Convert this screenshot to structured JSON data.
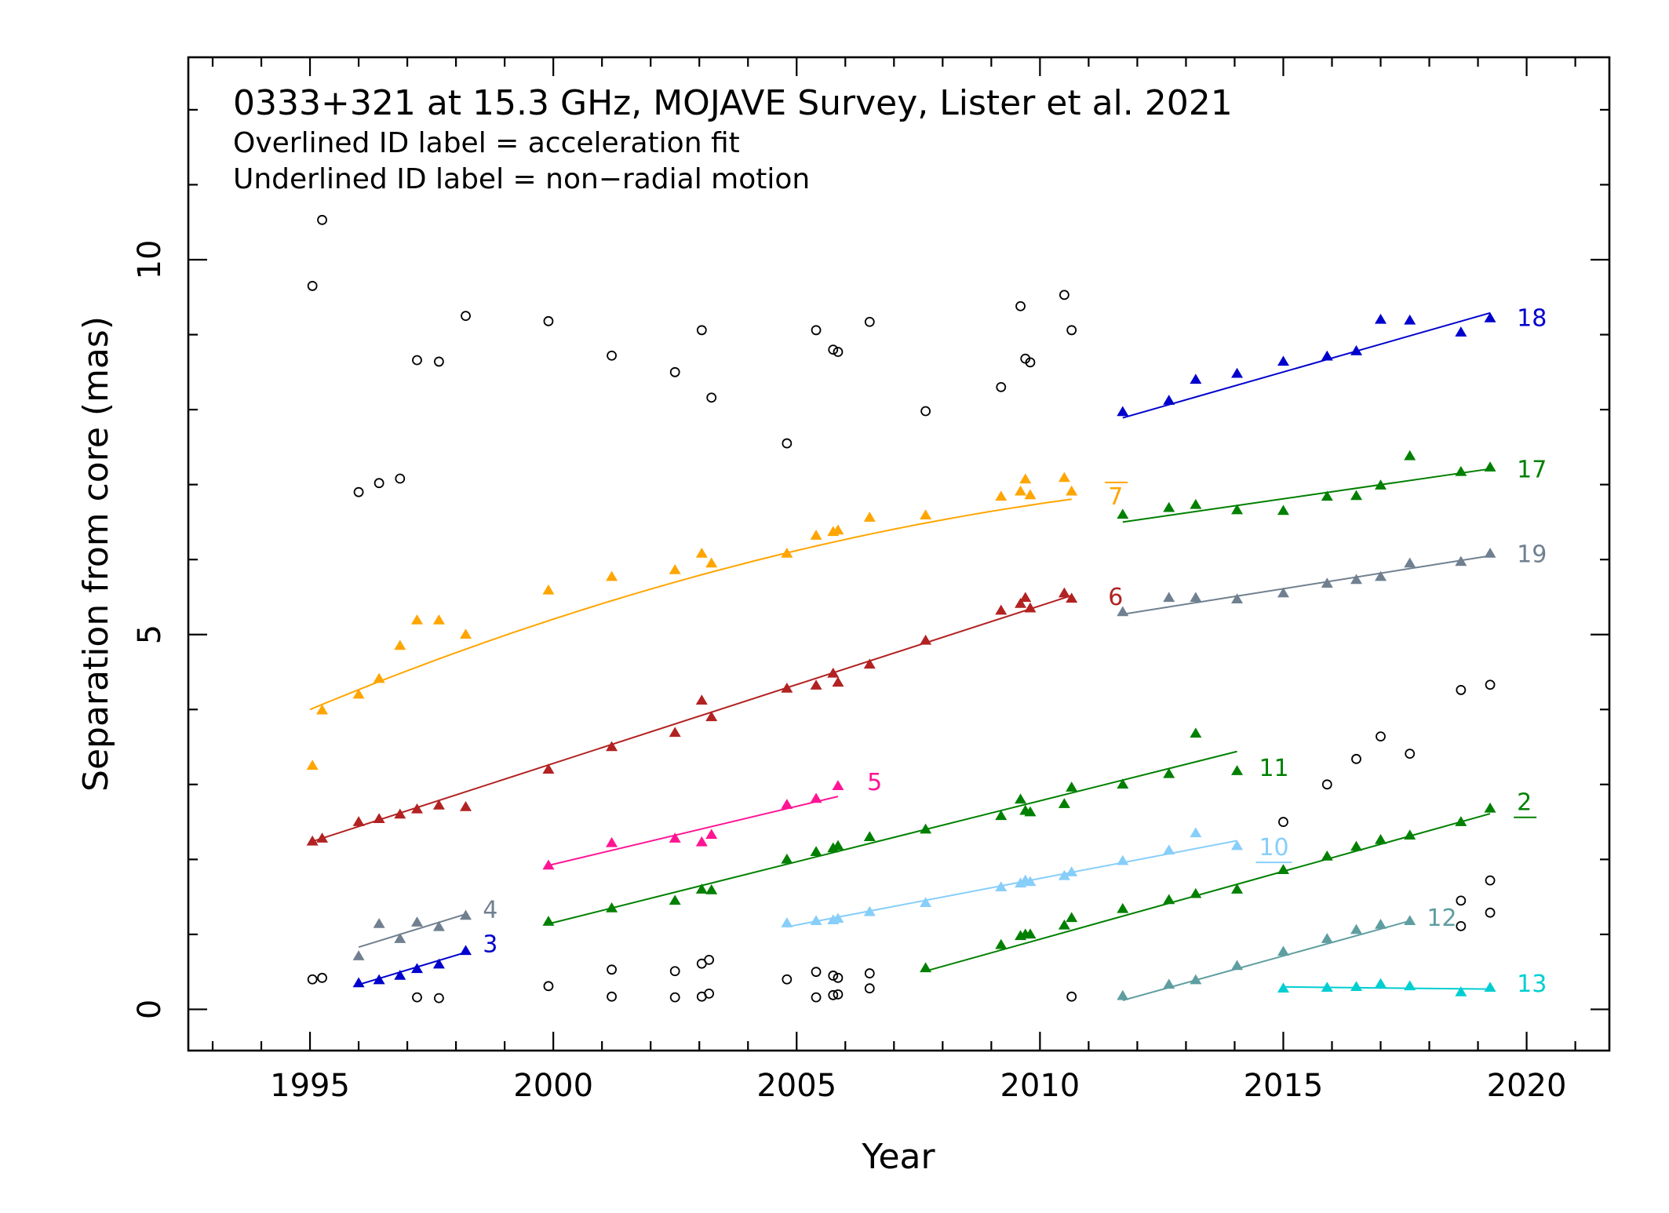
{
  "chart_data": {
    "type": "scatter",
    "title": "0333+321 at 15.3 GHz, MOJAVE Survey, Lister et al. 2021",
    "notes": [
      "Overlined ID label = acceleration fit",
      "Underlined ID label = non−radial motion"
    ],
    "xlabel": "Year",
    "ylabel": "Separation from core (mas)",
    "xlim": [
      1992.5,
      2021.7
    ],
    "ylim": [
      -0.55,
      12.7
    ],
    "xticks": [
      1995,
      2000,
      2005,
      2010,
      2015,
      2020
    ],
    "yticks": [
      0,
      5,
      10
    ],
    "grid": false,
    "legend": "none",
    "unassigned": {
      "marker": "open-circle",
      "color": "#000000",
      "points": [
        [
          1995.05,
          9.65
        ],
        [
          1995.25,
          10.53
        ],
        [
          1996.0,
          6.9
        ],
        [
          1996.42,
          7.02
        ],
        [
          1996.85,
          7.08
        ],
        [
          1997.2,
          8.66
        ],
        [
          1997.65,
          8.64
        ],
        [
          1998.2,
          9.25
        ],
        [
          1999.9,
          9.18
        ],
        [
          2001.2,
          8.72
        ],
        [
          2002.5,
          8.5
        ],
        [
          2003.05,
          9.06
        ],
        [
          2003.25,
          8.16
        ],
        [
          2004.8,
          7.55
        ],
        [
          2005.4,
          9.06
        ],
        [
          2005.75,
          8.8
        ],
        [
          2005.85,
          8.77
        ],
        [
          2006.5,
          9.17
        ],
        [
          2007.65,
          7.98
        ],
        [
          2009.2,
          8.3
        ],
        [
          2009.6,
          9.38
        ],
        [
          2009.7,
          8.68
        ],
        [
          2009.8,
          8.63
        ],
        [
          2010.5,
          9.53
        ],
        [
          2010.65,
          9.06
        ],
        [
          1995.05,
          0.4
        ],
        [
          1995.25,
          0.42
        ],
        [
          1997.2,
          0.16
        ],
        [
          1997.65,
          0.15
        ],
        [
          1999.9,
          0.31
        ],
        [
          2001.2,
          0.17
        ],
        [
          2001.2,
          0.53
        ],
        [
          2002.5,
          0.16
        ],
        [
          2002.5,
          0.51
        ],
        [
          2003.05,
          0.17
        ],
        [
          2003.05,
          0.61
        ],
        [
          2003.2,
          0.66
        ],
        [
          2003.2,
          0.21
        ],
        [
          2004.8,
          0.4
        ],
        [
          2005.4,
          0.16
        ],
        [
          2005.4,
          0.5
        ],
        [
          2005.75,
          0.45
        ],
        [
          2005.75,
          0.19
        ],
        [
          2005.85,
          0.42
        ],
        [
          2005.85,
          0.2
        ],
        [
          2006.5,
          0.48
        ],
        [
          2006.5,
          0.28
        ],
        [
          2010.65,
          0.17
        ],
        [
          2015.0,
          2.5
        ],
        [
          2015.9,
          3.0
        ],
        [
          2016.5,
          3.34
        ],
        [
          2017.0,
          3.64
        ],
        [
          2017.6,
          3.41
        ],
        [
          2018.65,
          4.26
        ],
        [
          2019.25,
          4.33
        ],
        [
          2018.65,
          1.45
        ],
        [
          2019.25,
          1.72
        ],
        [
          2018.65,
          1.11
        ],
        [
          2019.25,
          1.29
        ]
      ]
    },
    "series": [
      {
        "name": "7",
        "color": "#ffa500",
        "label_style": "overline",
        "label_at": [
          2011.4,
          6.84
        ],
        "fit": {
          "kind": "quadratic",
          "coef": [
            4.0,
            0.27,
            -0.0058
          ],
          "x0": 1995.0,
          "range": [
            1995.0,
            2010.65
          ]
        },
        "points": [
          [
            1995.05,
            3.25
          ],
          [
            1995.25,
            3.99
          ],
          [
            1996.0,
            4.2
          ],
          [
            1996.42,
            4.41
          ],
          [
            1996.85,
            4.85
          ],
          [
            1997.2,
            5.19
          ],
          [
            1997.65,
            5.19
          ],
          [
            1998.2,
            5.0
          ],
          [
            1999.9,
            5.59
          ],
          [
            2001.2,
            5.77
          ],
          [
            2002.5,
            5.86
          ],
          [
            2003.05,
            6.08
          ],
          [
            2003.25,
            5.95
          ],
          [
            2004.8,
            6.08
          ],
          [
            2005.4,
            6.32
          ],
          [
            2005.75,
            6.37
          ],
          [
            2005.85,
            6.39
          ],
          [
            2006.5,
            6.56
          ],
          [
            2007.65,
            6.59
          ],
          [
            2009.2,
            6.84
          ],
          [
            2009.6,
            6.91
          ],
          [
            2009.7,
            7.07
          ],
          [
            2009.8,
            6.86
          ],
          [
            2010.5,
            7.09
          ],
          [
            2010.65,
            6.91
          ]
        ]
      },
      {
        "name": "6",
        "color": "#b22222",
        "label_style": "none",
        "label_at": [
          2011.4,
          5.5
        ],
        "fit": {
          "kind": "linear",
          "range": [
            1995.05,
            2010.65
          ],
          "y": [
            2.24,
            5.52
          ]
        },
        "points": [
          [
            1995.05,
            2.24
          ],
          [
            1995.25,
            2.28
          ],
          [
            1996.0,
            2.5
          ],
          [
            1996.42,
            2.54
          ],
          [
            1996.85,
            2.6
          ],
          [
            1997.2,
            2.67
          ],
          [
            1997.65,
            2.72
          ],
          [
            1998.2,
            2.7
          ],
          [
            1999.9,
            3.2
          ],
          [
            2001.2,
            3.5
          ],
          [
            2002.5,
            3.69
          ],
          [
            2003.05,
            4.12
          ],
          [
            2003.25,
            3.9
          ],
          [
            2004.8,
            4.28
          ],
          [
            2005.4,
            4.32
          ],
          [
            2005.75,
            4.48
          ],
          [
            2005.85,
            4.36
          ],
          [
            2006.5,
            4.6
          ],
          [
            2007.65,
            4.92
          ],
          [
            2009.2,
            5.32
          ],
          [
            2009.6,
            5.41
          ],
          [
            2009.7,
            5.49
          ],
          [
            2009.8,
            5.35
          ],
          [
            2010.5,
            5.55
          ],
          [
            2010.65,
            5.48
          ]
        ]
      },
      {
        "name": "4",
        "color": "#708090",
        "label_style": "none",
        "label_at": [
          1998.55,
          1.33
        ],
        "fit": {
          "kind": "linear",
          "range": [
            1996.0,
            1998.2
          ],
          "y": [
            0.83,
            1.27
          ]
        },
        "points": [
          [
            1996.0,
            0.71
          ],
          [
            1996.42,
            1.14
          ],
          [
            1996.85,
            0.94
          ],
          [
            1997.2,
            1.16
          ],
          [
            1997.65,
            1.1
          ],
          [
            1998.2,
            1.25
          ]
        ]
      },
      {
        "name": "3",
        "color": "#0000cd",
        "label_style": "none",
        "label_at": [
          1998.55,
          0.87
        ],
        "fit": {
          "kind": "linear",
          "range": [
            1996.0,
            1998.2
          ],
          "y": [
            0.33,
            0.76
          ]
        },
        "points": [
          [
            1996.0,
            0.35
          ],
          [
            1996.42,
            0.39
          ],
          [
            1996.85,
            0.45
          ],
          [
            1997.2,
            0.54
          ],
          [
            1997.65,
            0.6
          ],
          [
            1998.2,
            0.78
          ]
        ]
      },
      {
        "name": "5",
        "color": "#ff1493",
        "label_style": "none",
        "label_at": [
          2006.45,
          3.03
        ],
        "fit": {
          "kind": "linear",
          "range": [
            1999.9,
            2005.85
          ],
          "y": [
            1.92,
            2.84
          ]
        },
        "points": [
          [
            1999.9,
            1.92
          ],
          [
            2001.2,
            2.22
          ],
          [
            2002.5,
            2.28
          ],
          [
            2003.05,
            2.23
          ],
          [
            2003.25,
            2.33
          ],
          [
            2004.8,
            2.73
          ],
          [
            2005.4,
            2.81
          ],
          [
            2005.85,
            2.98
          ]
        ]
      },
      {
        "name": "11",
        "color": "#008000",
        "label_style": "none",
        "label_at": [
          2014.5,
          3.22
        ],
        "fit": {
          "kind": "linear",
          "range": [
            1999.9,
            2014.05
          ],
          "y": [
            1.14,
            3.44
          ]
        },
        "points": [
          [
            1999.9,
            1.17
          ],
          [
            2001.2,
            1.35
          ],
          [
            2002.5,
            1.45
          ],
          [
            2003.05,
            1.6
          ],
          [
            2003.25,
            1.59
          ],
          [
            2004.8,
            2.0
          ],
          [
            2005.4,
            2.1
          ],
          [
            2005.75,
            2.15
          ],
          [
            2005.85,
            2.18
          ],
          [
            2006.5,
            2.3
          ],
          [
            2007.65,
            2.4
          ],
          [
            2009.2,
            2.58
          ],
          [
            2009.6,
            2.8
          ],
          [
            2009.7,
            2.65
          ],
          [
            2009.8,
            2.63
          ],
          [
            2010.5,
            2.74
          ],
          [
            2010.65,
            2.96
          ],
          [
            2011.7,
            3.0
          ],
          [
            2012.65,
            3.14
          ],
          [
            2013.2,
            3.68
          ],
          [
            2014.05,
            3.18
          ]
        ]
      },
      {
        "name": "10",
        "color": "#87cefa",
        "label_style": "underline",
        "label_at": [
          2014.5,
          2.16
        ],
        "fit": {
          "kind": "linear",
          "range": [
            2004.8,
            2014.05
          ],
          "y": [
            1.1,
            2.25
          ]
        },
        "points": [
          [
            2004.8,
            1.15
          ],
          [
            2005.4,
            1.18
          ],
          [
            2005.75,
            1.19
          ],
          [
            2005.85,
            1.21
          ],
          [
            2006.5,
            1.3
          ],
          [
            2007.65,
            1.42
          ],
          [
            2009.2,
            1.63
          ],
          [
            2009.6,
            1.68
          ],
          [
            2009.7,
            1.72
          ],
          [
            2009.8,
            1.7
          ],
          [
            2010.5,
            1.78
          ],
          [
            2010.65,
            1.83
          ],
          [
            2011.7,
            1.98
          ],
          [
            2012.65,
            2.12
          ],
          [
            2013.2,
            2.35
          ],
          [
            2014.05,
            2.18
          ]
        ]
      },
      {
        "name": "2",
        "color": "#008000",
        "label_style": "underline",
        "label_at": [
          2019.8,
          2.76
        ],
        "fit": {
          "kind": "linear",
          "range": [
            2007.65,
            2019.25
          ],
          "y": [
            0.51,
            2.61
          ]
        },
        "points": [
          [
            2007.65,
            0.55
          ],
          [
            2009.2,
            0.86
          ],
          [
            2009.6,
            0.98
          ],
          [
            2009.7,
            1.0
          ],
          [
            2009.8,
            1.0
          ],
          [
            2010.5,
            1.12
          ],
          [
            2010.65,
            1.22
          ],
          [
            2011.7,
            1.34
          ],
          [
            2012.65,
            1.46
          ],
          [
            2013.2,
            1.54
          ],
          [
            2014.05,
            1.6
          ],
          [
            2015.0,
            1.86
          ],
          [
            2015.9,
            2.04
          ],
          [
            2016.5,
            2.17
          ],
          [
            2017.0,
            2.26
          ],
          [
            2017.6,
            2.32
          ],
          [
            2018.65,
            2.5
          ],
          [
            2019.25,
            2.68
          ]
        ]
      },
      {
        "name": "12",
        "color": "#5f9ea0",
        "label_style": "none",
        "label_at": [
          2017.95,
          1.22
        ],
        "fit": {
          "kind": "linear",
          "range": [
            2011.7,
            2017.6
          ],
          "y": [
            0.12,
            1.18
          ]
        },
        "points": [
          [
            2011.7,
            0.18
          ],
          [
            2012.65,
            0.33
          ],
          [
            2013.2,
            0.39
          ],
          [
            2014.05,
            0.58
          ],
          [
            2015.0,
            0.77
          ],
          [
            2015.9,
            0.94
          ],
          [
            2016.5,
            1.06
          ],
          [
            2017.0,
            1.13
          ],
          [
            2017.6,
            1.18
          ]
        ]
      },
      {
        "name": "13",
        "color": "#00ced1",
        "label_style": "none",
        "label_at": [
          2019.8,
          0.34
        ],
        "fit": {
          "kind": "linear",
          "range": [
            2015.0,
            2019.25
          ],
          "y": [
            0.3,
            0.27
          ]
        },
        "points": [
          [
            2015.0,
            0.28
          ],
          [
            2015.9,
            0.29
          ],
          [
            2016.5,
            0.3
          ],
          [
            2017.0,
            0.34
          ],
          [
            2017.6,
            0.31
          ],
          [
            2018.65,
            0.23
          ],
          [
            2019.25,
            0.29
          ]
        ]
      },
      {
        "name": "18",
        "color": "#0000cd",
        "label_style": "none",
        "label_at": [
          2019.8,
          9.22
        ],
        "fit": {
          "kind": "linear",
          "range": [
            2011.7,
            2019.25
          ],
          "y": [
            7.89,
            9.29
          ]
        },
        "points": [
          [
            2011.7,
            7.97
          ],
          [
            2012.65,
            8.12
          ],
          [
            2013.2,
            8.4
          ],
          [
            2014.05,
            8.48
          ],
          [
            2015.0,
            8.64
          ],
          [
            2015.9,
            8.71
          ],
          [
            2016.5,
            8.78
          ],
          [
            2017.0,
            9.2
          ],
          [
            2017.6,
            9.19
          ],
          [
            2018.65,
            9.03
          ],
          [
            2019.25,
            9.22
          ]
        ]
      },
      {
        "name": "17",
        "color": "#008000",
        "label_style": "none",
        "label_at": [
          2019.8,
          7.2
        ],
        "fit": {
          "kind": "linear",
          "range": [
            2011.7,
            2019.25
          ],
          "y": [
            6.5,
            7.21
          ]
        },
        "points": [
          [
            2011.7,
            6.6
          ],
          [
            2012.65,
            6.69
          ],
          [
            2013.2,
            6.73
          ],
          [
            2014.05,
            6.66
          ],
          [
            2015.0,
            6.65
          ],
          [
            2015.9,
            6.84
          ],
          [
            2016.5,
            6.85
          ],
          [
            2017.0,
            6.99
          ],
          [
            2017.6,
            7.38
          ],
          [
            2018.65,
            7.17
          ],
          [
            2019.25,
            7.23
          ]
        ]
      },
      {
        "name": "19",
        "color": "#708090",
        "label_style": "none",
        "label_at": [
          2019.8,
          6.07
        ],
        "fit": {
          "kind": "linear",
          "range": [
            2011.7,
            2019.25
          ],
          "y": [
            5.27,
            6.05
          ]
        },
        "points": [
          [
            2011.7,
            5.3
          ],
          [
            2012.65,
            5.49
          ],
          [
            2013.2,
            5.49
          ],
          [
            2014.05,
            5.47
          ],
          [
            2015.0,
            5.55
          ],
          [
            2015.9,
            5.68
          ],
          [
            2016.5,
            5.73
          ],
          [
            2017.0,
            5.77
          ],
          [
            2017.6,
            5.95
          ],
          [
            2018.65,
            5.97
          ],
          [
            2019.25,
            6.08
          ]
        ]
      }
    ]
  }
}
